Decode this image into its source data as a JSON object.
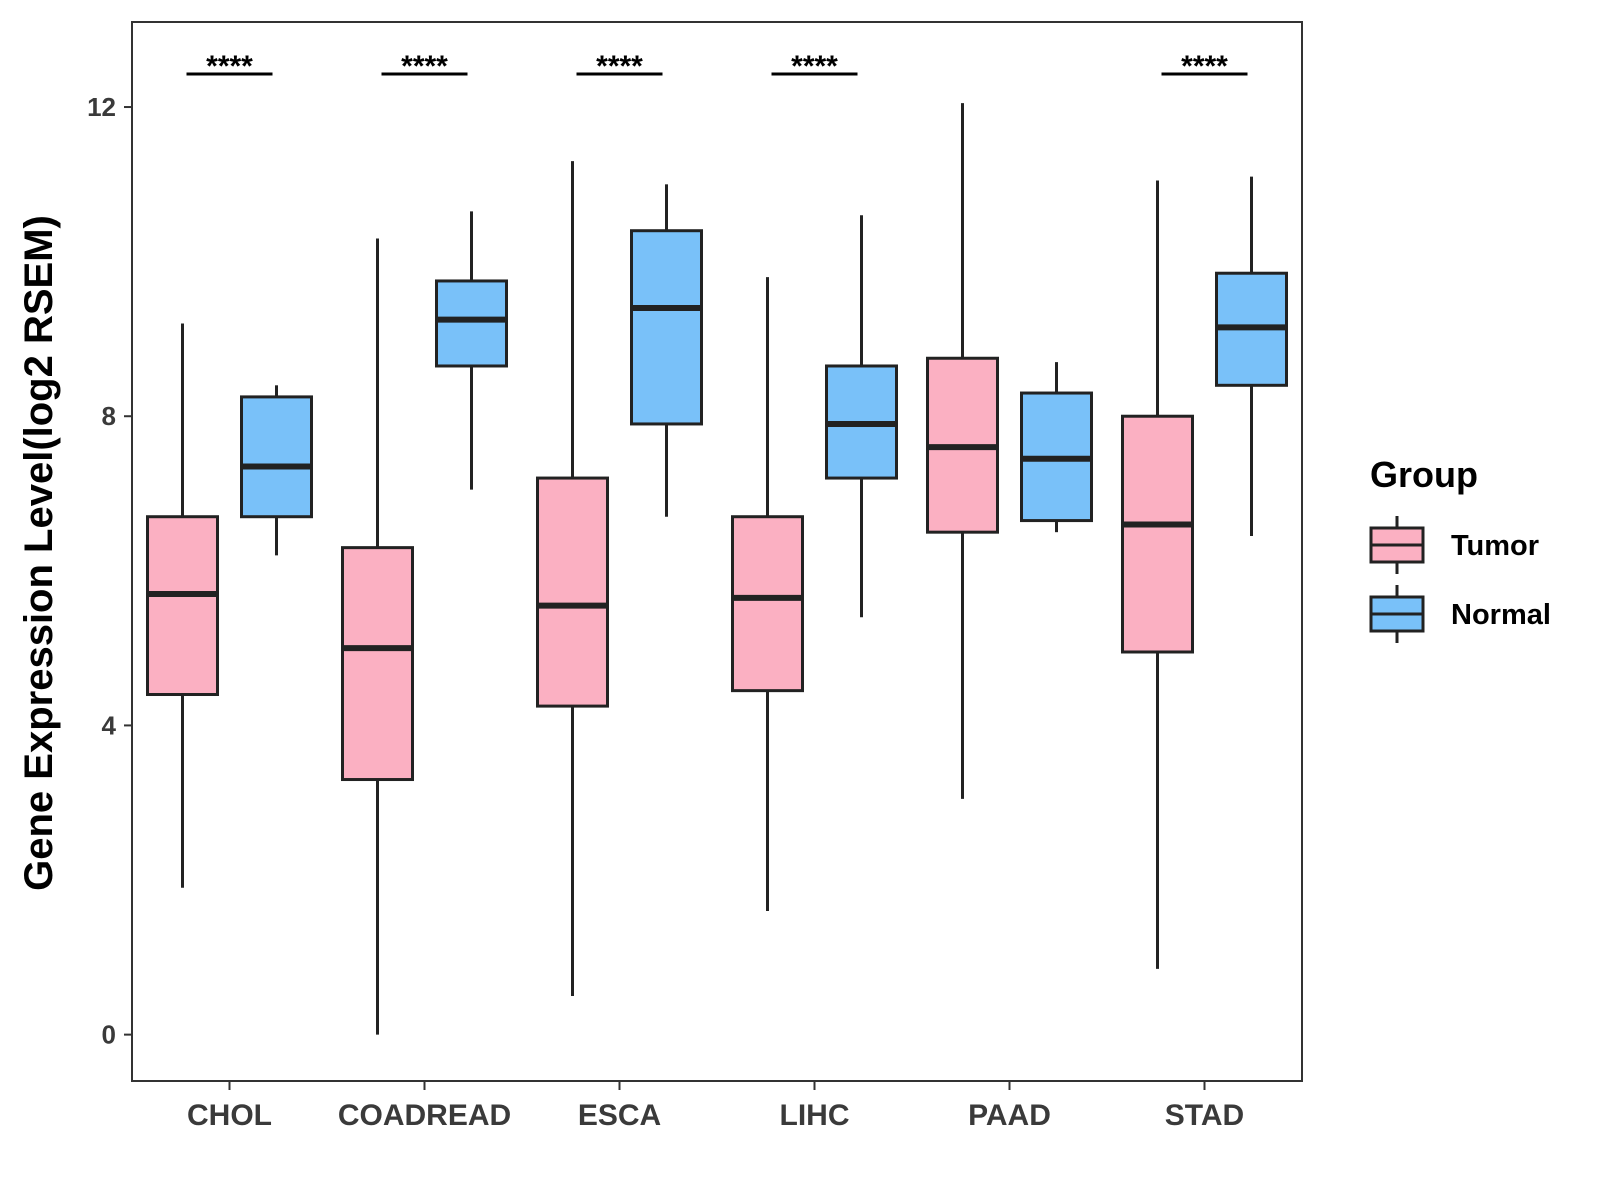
{
  "chart_data": {
    "type": "boxplot",
    "title": "",
    "xlabel": "",
    "ylabel": "Gene Expression Level(log2 RSEM)",
    "ylim": [
      -0.6,
      13.1
    ],
    "yticks": [
      0,
      4,
      8,
      12
    ],
    "categories": [
      "CHOL",
      "COADREAD",
      "ESCA",
      "LIHC",
      "PAAD",
      "STAD"
    ],
    "legend": {
      "title": "Group",
      "position": "right",
      "entries": [
        {
          "name": "Tumor",
          "color": "#fbb0c2"
        },
        {
          "name": "Normal",
          "color": "#79c1f9"
        }
      ]
    },
    "significance": [
      "****",
      "****",
      "****",
      "****",
      "",
      "****"
    ],
    "series": [
      {
        "name": "Tumor",
        "color": "#fbb0c2",
        "boxes": [
          {
            "whisker_low": 1.9,
            "q1": 4.4,
            "median": 5.7,
            "q3": 6.7,
            "whisker_high": 9.2
          },
          {
            "whisker_low": 0.0,
            "q1": 3.3,
            "median": 5.0,
            "q3": 6.3,
            "whisker_high": 10.3
          },
          {
            "whisker_low": 0.5,
            "q1": 4.25,
            "median": 5.55,
            "q3": 7.2,
            "whisker_high": 11.3
          },
          {
            "whisker_low": 1.6,
            "q1": 4.45,
            "median": 5.65,
            "q3": 6.7,
            "whisker_high": 9.8
          },
          {
            "whisker_low": 3.05,
            "q1": 6.5,
            "median": 7.6,
            "q3": 8.75,
            "whisker_high": 12.05
          },
          {
            "whisker_low": 0.85,
            "q1": 4.95,
            "median": 6.6,
            "q3": 8.0,
            "whisker_high": 11.05
          }
        ]
      },
      {
        "name": "Normal",
        "color": "#79c1f9",
        "boxes": [
          {
            "whisker_low": 6.2,
            "q1": 6.7,
            "median": 7.35,
            "q3": 8.25,
            "whisker_high": 8.4
          },
          {
            "whisker_low": 7.05,
            "q1": 8.65,
            "median": 9.25,
            "q3": 9.75,
            "whisker_high": 10.65
          },
          {
            "whisker_low": 6.7,
            "q1": 7.9,
            "median": 9.4,
            "q3": 10.4,
            "whisker_high": 11.0
          },
          {
            "whisker_low": 5.4,
            "q1": 7.2,
            "median": 7.9,
            "q3": 8.65,
            "whisker_high": 10.6
          },
          {
            "whisker_low": 6.5,
            "q1": 6.65,
            "median": 7.45,
            "q3": 8.3,
            "whisker_high": 8.7
          },
          {
            "whisker_low": 6.45,
            "q1": 8.4,
            "median": 9.15,
            "q3": 9.85,
            "whisker_high": 11.1
          }
        ]
      }
    ]
  }
}
